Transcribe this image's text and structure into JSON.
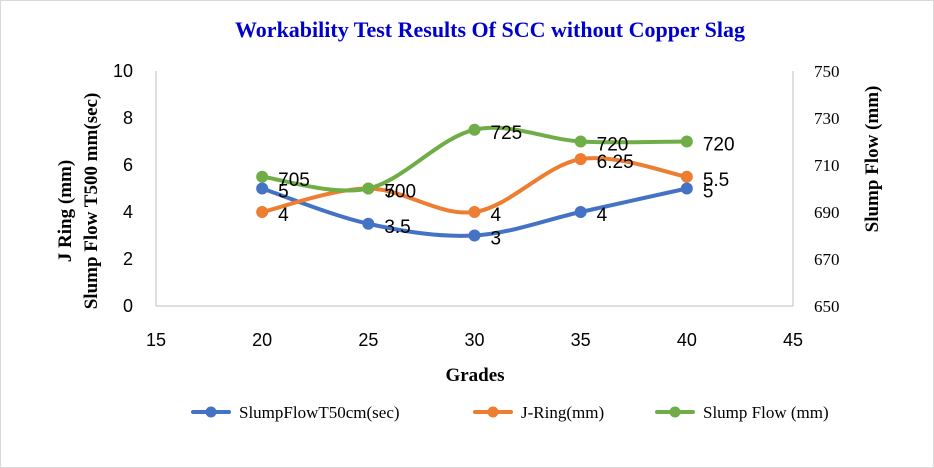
{
  "chart_data": {
    "type": "line",
    "title": "Workability Test Results Of SCC without Copper Slag",
    "xlabel": "Grades",
    "ylabel_left": [
      "J Ring (mm)",
      "Slump Flow T500 mm(sec)"
    ],
    "ylabel_right": "Slump Flow (mm)",
    "x": [
      20,
      25,
      30,
      35,
      40
    ],
    "xlim": [
      15,
      45
    ],
    "xticks": [
      "15",
      "20",
      "25",
      "30",
      "35",
      "40",
      "45"
    ],
    "ylim_left": [
      0,
      10
    ],
    "yticks_left": [
      "0",
      "2",
      "4",
      "6",
      "8",
      "10"
    ],
    "ylim_right": [
      650,
      750
    ],
    "yticks_right": [
      "650",
      "670",
      "690",
      "710",
      "730",
      "750"
    ],
    "grid": false,
    "legend_position": "bottom",
    "series": [
      {
        "name": "SlumpFlowT50cm(sec)",
        "axis": "left",
        "color": "#4472c4",
        "values": [
          5,
          3.5,
          3,
          4,
          5
        ],
        "labels": [
          "5",
          "3.5",
          "3",
          "4",
          "5"
        ]
      },
      {
        "name": "J-Ring(mm)",
        "axis": "left",
        "color": "#ed7d31",
        "values": [
          4,
          5,
          4,
          6.25,
          5.5
        ],
        "labels": [
          "4",
          "5",
          "4",
          "6.25",
          "5.5"
        ]
      },
      {
        "name": "Slump Flow (mm)",
        "axis": "right",
        "color": "#70ad47",
        "values": [
          705,
          700,
          725,
          720,
          720
        ],
        "labels": [
          "705",
          "700",
          "725",
          "720",
          "720"
        ]
      }
    ]
  }
}
